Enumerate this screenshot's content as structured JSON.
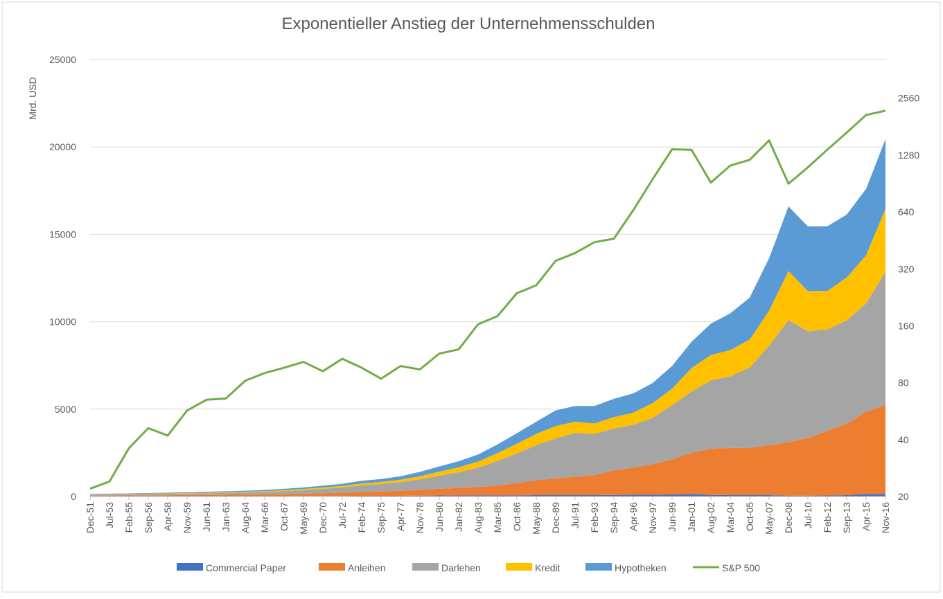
{
  "chart_data": {
    "type": "stacked-area",
    "title": "Exponentieller Anstieg der Unternehmensschulden",
    "ylabel": "Mrd. USD",
    "categories": [
      "Dec-51",
      "Jul-53",
      "Feb-55",
      "Sep-56",
      "Apr-58",
      "Nov-59",
      "Jun-61",
      "Jan-63",
      "Aug-64",
      "Mar-66",
      "Oct-67",
      "May-69",
      "Dec-70",
      "Jul-72",
      "Feb-74",
      "Sep-75",
      "Apr-77",
      "Nov-78",
      "Jun-80",
      "Jan-82",
      "Aug-83",
      "Mar-85",
      "Oct-86",
      "May-88",
      "Dec-89",
      "Jul-91",
      "Feb-93",
      "Sep-94",
      "Apr-96",
      "Nov-97",
      "Jun-99",
      "Jan-01",
      "Aug-02",
      "Mar-04",
      "Oct-05",
      "May-07",
      "Dec-08",
      "Jul-10",
      "Feb-12",
      "Sep-13",
      "Apr-15",
      "Nov-16"
    ],
    "series": [
      {
        "name": "Commercial Paper",
        "color": "#4472c4",
        "values": [
          10,
          10,
          10,
          15,
          15,
          15,
          15,
          15,
          15,
          15,
          20,
          30,
          30,
          30,
          40,
          40,
          40,
          50,
          60,
          70,
          70,
          70,
          70,
          80,
          80,
          80,
          80,
          90,
          100,
          100,
          120,
          150,
          90,
          80,
          80,
          80,
          50,
          50,
          60,
          80,
          150,
          150
        ]
      },
      {
        "name": "Anleihen",
        "color": "#ed7d31",
        "values": [
          40,
          45,
          50,
          55,
          60,
          65,
          70,
          80,
          90,
          100,
          110,
          130,
          160,
          190,
          220,
          250,
          280,
          330,
          380,
          420,
          480,
          560,
          700,
          850,
          950,
          1050,
          1150,
          1400,
          1550,
          1750,
          2000,
          2350,
          2650,
          2700,
          2700,
          2850,
          3050,
          3300,
          3700,
          4100,
          4700,
          5100
        ]
      },
      {
        "name": "Darlehen",
        "color": "#a5a5a5",
        "values": [
          60,
          60,
          70,
          75,
          80,
          90,
          100,
          110,
          120,
          140,
          170,
          200,
          250,
          300,
          380,
          420,
          500,
          600,
          750,
          900,
          1100,
          1400,
          1700,
          2000,
          2300,
          2500,
          2350,
          2400,
          2450,
          2650,
          3100,
          3500,
          3900,
          4100,
          4600,
          5700,
          7000,
          6100,
          5800,
          5900,
          6200,
          7600
        ]
      },
      {
        "name": "Kredit",
        "color": "#ffc000",
        "values": [
          20,
          20,
          20,
          25,
          25,
          30,
          35,
          40,
          45,
          50,
          60,
          70,
          80,
          90,
          110,
          120,
          140,
          180,
          230,
          280,
          350,
          450,
          550,
          650,
          700,
          650,
          600,
          650,
          700,
          850,
          950,
          1350,
          1450,
          1500,
          1600,
          2000,
          2800,
          2300,
          2200,
          2450,
          2750,
          3600
        ]
      },
      {
        "name": "Hypotheken",
        "color": "#5b9bd5",
        "values": [
          30,
          30,
          30,
          35,
          40,
          45,
          50,
          55,
          60,
          70,
          80,
          90,
          100,
          120,
          150,
          170,
          200,
          250,
          300,
          350,
          400,
          500,
          600,
          700,
          900,
          900,
          1000,
          1050,
          1100,
          1150,
          1300,
          1500,
          1800,
          2100,
          2400,
          3000,
          3700,
          3700,
          3700,
          3600,
          3800,
          4000
        ]
      },
      {
        "name": "S&P 500",
        "type": "line",
        "axis": "y2",
        "color": "#70ad47",
        "values": [
          22,
          24,
          36,
          46,
          42,
          57,
          65,
          66,
          82,
          90,
          96,
          103,
          92,
          107,
          96,
          84,
          98,
          94,
          114,
          120,
          163,
          180,
          238,
          262,
          353,
          388,
          443,
          462,
          654,
          955,
          1373,
          1366,
          916,
          1126,
          1207,
          1530,
          903,
          1102,
          1366,
          1682,
          2085,
          2198
        ]
      }
    ],
    "ylim": [
      0,
      25000
    ],
    "yticks": [
      0,
      5000,
      10000,
      15000,
      20000,
      25000
    ],
    "y2lim": [
      20,
      4096
    ],
    "y2ticks": [
      20,
      40,
      80,
      160,
      320,
      640,
      1280,
      2560
    ],
    "y2scale": "log",
    "grid": true,
    "legend": "bottom"
  }
}
